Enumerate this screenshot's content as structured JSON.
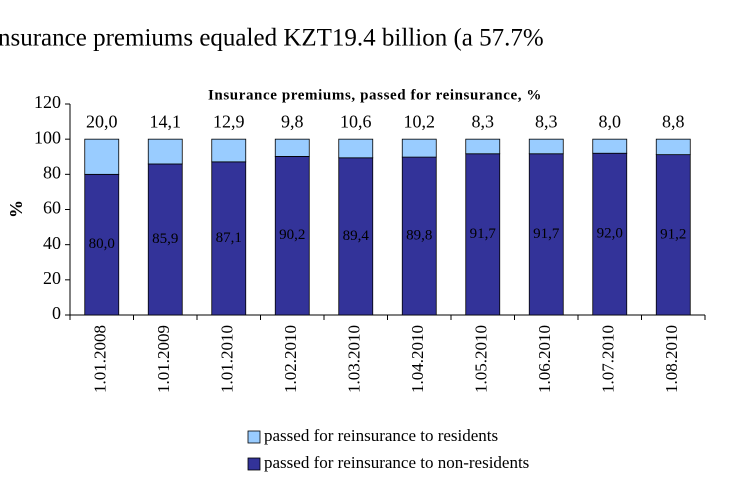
{
  "body_text": "nsurance premiums equaled KZT19.4 billion (a 57.7%",
  "chart_data": {
    "type": "stacked_bar",
    "title": "Insurance premiums, passed for reinsurance, %",
    "y_label": "%",
    "categories": [
      "1.01.2008",
      "1.01.2009",
      "1.01.2010",
      "1.02.2010",
      "1.03.2010",
      "1.04.2010",
      "1.05.2010",
      "1.06.2010",
      "1.07.2010",
      "1.08.2010"
    ],
    "series": [
      {
        "name": "passed for reinsurance to non-residents",
        "color": "#333399",
        "values": [
          80.0,
          85.9,
          87.1,
          90.2,
          89.4,
          89.8,
          91.7,
          91.7,
          92.0,
          91.2
        ],
        "value_labels": [
          "80,0",
          "85,9",
          "87,1",
          "90,2",
          "89,4",
          "89,8",
          "91,7",
          "91,7",
          "92,0",
          "91,2"
        ]
      },
      {
        "name": "passed for reinsurance to residents",
        "color": "#99ccff",
        "values": [
          20.0,
          14.1,
          12.9,
          9.8,
          10.6,
          10.2,
          8.3,
          8.3,
          8.0,
          8.8
        ],
        "value_labels": [
          "20,0",
          "14,1",
          "12,9",
          "9,8",
          "10,6",
          "10,2",
          "8,3",
          "8,3",
          "8,0",
          "8,8"
        ]
      }
    ],
    "ylim": [
      0,
      120
    ],
    "yticks": [
      0,
      20,
      40,
      60,
      80,
      100,
      120
    ]
  }
}
